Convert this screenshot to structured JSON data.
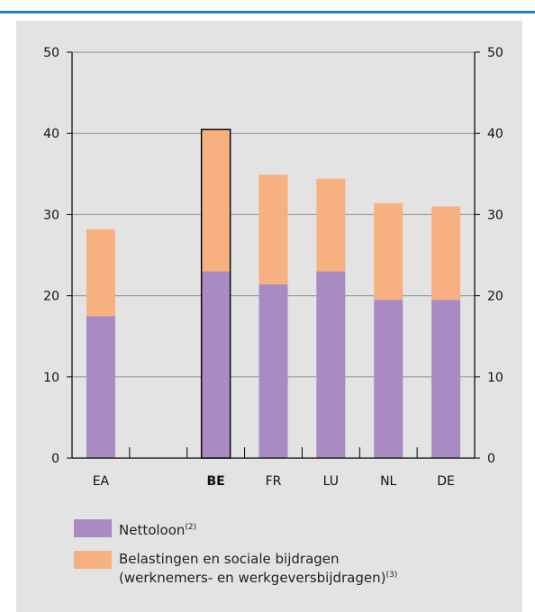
{
  "chart_data": {
    "type": "bar",
    "stacked": true,
    "categories": [
      "EA",
      "",
      "BE",
      "FR",
      "LU",
      "NL",
      "DE"
    ],
    "highlight_category": "BE",
    "series": [
      {
        "name": "Nettoloon",
        "values": [
          17.5,
          null,
          23.0,
          21.4,
          23.0,
          19.5,
          19.5
        ],
        "color": "#a98bc4"
      },
      {
        "name": "Belastingen en sociale bijdragen",
        "values": [
          10.7,
          null,
          17.5,
          13.5,
          11.4,
          11.9,
          11.5
        ],
        "color": "#f7b07f"
      }
    ],
    "ylim": [
      0,
      50
    ],
    "yticks": [
      0,
      10,
      20,
      30,
      40,
      50
    ],
    "ytick_labels": [
      "0",
      "10",
      "20",
      "30",
      "40",
      "50"
    ],
    "grid": true,
    "right_axis": true
  },
  "legend": {
    "items": [
      {
        "label": "Nettoloon",
        "note": "(2)",
        "color": "#a98bc4"
      },
      {
        "label": "Belastingen en sociale bijdragen",
        "label_line2": "(werknemers- en werkgeversbijdragen)",
        "note": "(3)",
        "color": "#f7b07f"
      }
    ]
  }
}
